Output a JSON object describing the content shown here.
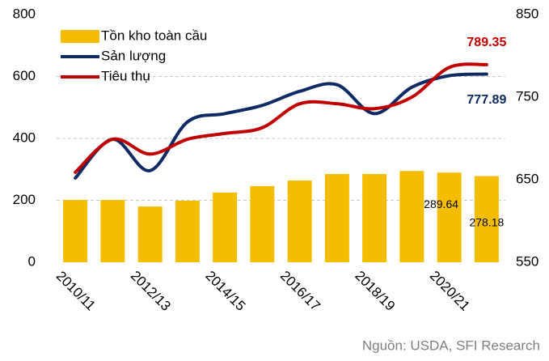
{
  "chart_data": {
    "type": "bar_line",
    "categories": [
      "2010/11",
      null,
      "2012/13",
      null,
      "2014/15",
      null,
      "2016/17",
      null,
      "2018/19",
      null,
      "2020/21",
      null
    ],
    "series": [
      {
        "name": "Tồn kho toàn cầu",
        "type": "bar",
        "color": "#f5bd00",
        "values": [
          201,
          201,
          180,
          199,
          225,
          246,
          264,
          285,
          285,
          295,
          289.64,
          278.18
        ],
        "value_labels": [
          null,
          null,
          null,
          null,
          null,
          null,
          null,
          null,
          null,
          null,
          "289.64",
          "278.18"
        ]
      },
      {
        "name": "Sản lượng",
        "type": "line",
        "axis": "y2",
        "color": "#102a63",
        "values": [
          652,
          699,
          661,
          720,
          730,
          740,
          757,
          765,
          730,
          762,
          776,
          777.89
        ],
        "value_labels": [
          null,
          null,
          null,
          null,
          null,
          null,
          null,
          null,
          null,
          null,
          null,
          "777.89"
        ]
      },
      {
        "name": "Tiêu thụ",
        "type": "line",
        "axis": "y2",
        "color": "#c00000",
        "values": [
          659,
          699,
          681,
          699,
          706,
          713,
          742,
          742,
          736,
          750,
          786,
          789.35
        ],
        "value_labels": [
          null,
          null,
          null,
          null,
          null,
          null,
          null,
          null,
          null,
          null,
          null,
          "789.35"
        ]
      }
    ],
    "ylim": [
      0,
      800
    ],
    "yticks": [
      0,
      200,
      400,
      600,
      800
    ],
    "y2lim": [
      550,
      850
    ],
    "y2ticks": [
      550,
      650,
      750,
      850
    ],
    "grid": true,
    "legend": "top-left",
    "source": "Nguồn: USDA, SFI Research"
  }
}
